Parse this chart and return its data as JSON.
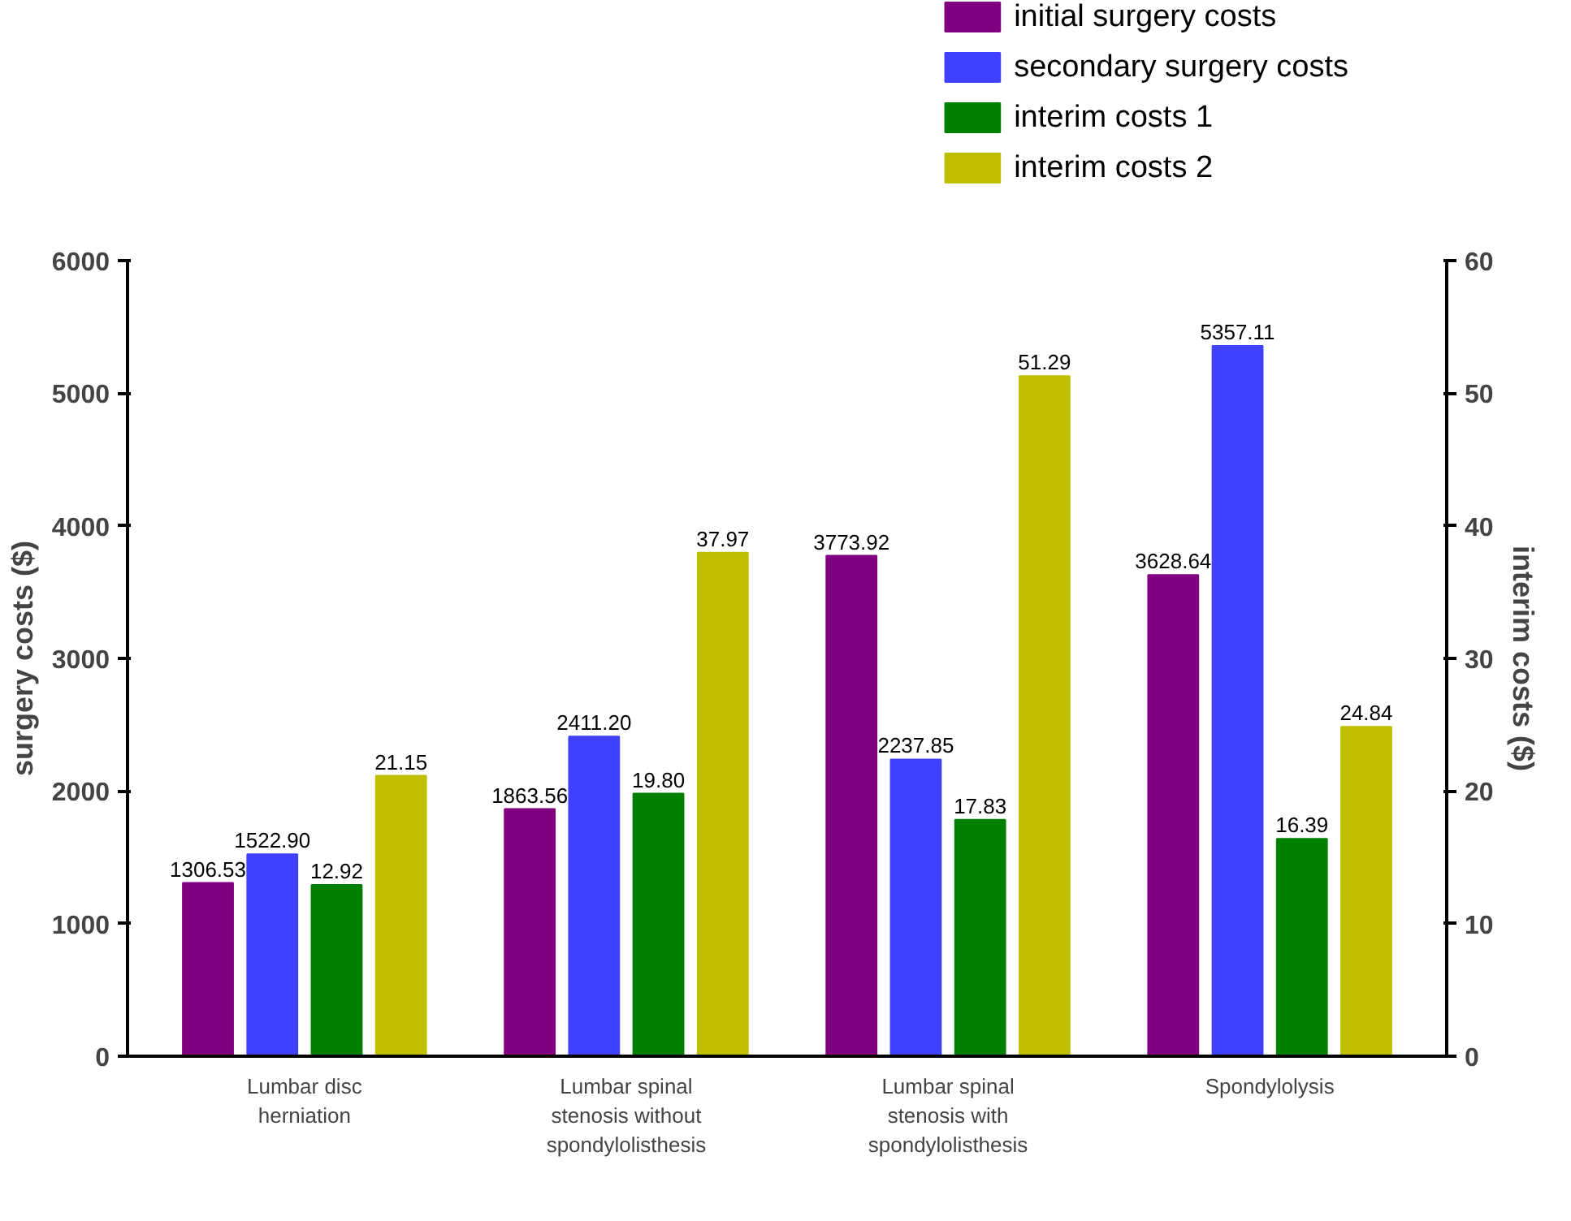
{
  "chart_data": {
    "type": "bar",
    "categories": [
      "Lumbar disc herniation",
      "Lumbar spinal stenosis without spondylolisthesis",
      "Lumbar spinal stenosis with spondylolisthesis",
      "Spondylolysis"
    ],
    "series": [
      {
        "name": "initial surgery costs",
        "color": "#800080",
        "values": [
          1306.53,
          1863.56,
          3773.92,
          3628.64
        ],
        "value_labels": [
          "1306.53",
          "1863.56",
          "3773.92",
          "3628.64"
        ]
      },
      {
        "name": "secondary surgery costs",
        "color": "#4040ff",
        "values": [
          1522.9,
          2411.2,
          2237.85,
          5357.11
        ],
        "value_labels": [
          "1522.90",
          "2411.20",
          "2237.85",
          "5357.11"
        ]
      },
      {
        "name": "interim costs 1",
        "color": "#008000",
        "axis": "y2",
        "values": [
          12.92,
          19.8,
          17.83,
          16.39
        ],
        "value_labels": [
          "12.92",
          "19.80",
          "17.83",
          "16.39"
        ]
      },
      {
        "name": "interim costs 2",
        "color": "#bfbf00",
        "axis": "y2",
        "values": [
          21.15,
          37.97,
          51.29,
          24.84
        ],
        "value_labels": [
          "21.15",
          "37.97",
          "51.29",
          "24.84"
        ]
      }
    ],
    "ylabel": "surgery costs ($)",
    "y2label": "interim costs ($)",
    "ylim": [
      0,
      6000
    ],
    "yticks": [
      0,
      1000,
      2000,
      3000,
      4000,
      5000,
      6000
    ],
    "y2lim": [
      0,
      60
    ],
    "y2ticks": [
      0,
      10,
      20,
      30,
      40,
      50,
      60
    ],
    "legend": "top right",
    "grid": false
  }
}
